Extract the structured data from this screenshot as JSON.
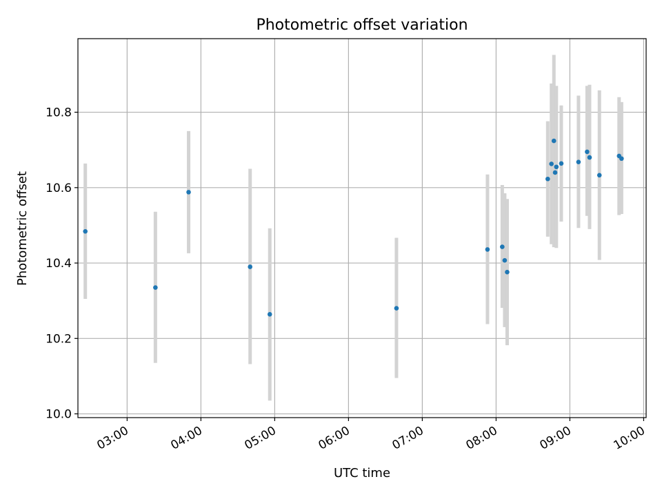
{
  "chart_data": {
    "type": "scatter",
    "title": "Photometric offset variation",
    "xlabel": "UTC time",
    "ylabel": "Photometric offset",
    "xlim": [
      "02:20",
      "10:02"
    ],
    "ylim": [
      9.99,
      10.9951
    ],
    "xticks": [
      "03:00",
      "04:00",
      "05:00",
      "06:00",
      "07:00",
      "08:00",
      "09:00",
      "10:00"
    ],
    "yticks": [
      "10.0",
      "10.2",
      "10.4",
      "10.6",
      "10.8"
    ],
    "grid": true,
    "legend": "none",
    "colors": {
      "points": "#1f77b4",
      "errorbars": "#d3d3d3",
      "grid": "#b0b0b0"
    },
    "series": [
      {
        "points": [
          {
            "x": "02:26",
            "y": 10.484,
            "y_low": 10.305,
            "y_high": 10.664
          },
          {
            "x": "03:23",
            "y": 10.335,
            "y_low": 10.135,
            "y_high": 10.536
          },
          {
            "x": "03:50",
            "y": 10.588,
            "y_low": 10.426,
            "y_high": 10.75
          },
          {
            "x": "04:40",
            "y": 10.39,
            "y_low": 10.132,
            "y_high": 10.65
          },
          {
            "x": "04:56",
            "y": 10.264,
            "y_low": 10.035,
            "y_high": 10.492
          },
          {
            "x": "06:39",
            "y": 10.28,
            "y_low": 10.095,
            "y_high": 10.467
          },
          {
            "x": "07:53",
            "y": 10.436,
            "y_low": 10.238,
            "y_high": 10.635
          },
          {
            "x": "08:05",
            "y": 10.443,
            "y_low": 10.281,
            "y_high": 10.607
          },
          {
            "x": "08:07",
            "y": 10.407,
            "y_low": 10.23,
            "y_high": 10.585
          },
          {
            "x": "08:09",
            "y": 10.376,
            "y_low": 10.182,
            "y_high": 10.57
          },
          {
            "x": "08:42",
            "y": 10.623,
            "y_low": 10.47,
            "y_high": 10.776
          },
          {
            "x": "08:45",
            "y": 10.663,
            "y_low": 10.45,
            "y_high": 10.876
          },
          {
            "x": "08:47",
            "y": 10.724,
            "y_low": 10.442,
            "y_high": 10.952
          },
          {
            "x": "08:48",
            "y": 10.64,
            "y_low": 10.445,
            "y_high": 10.857
          },
          {
            "x": "08:49",
            "y": 10.655,
            "y_low": 10.44,
            "y_high": 10.87
          },
          {
            "x": "08:53",
            "y": 10.664,
            "y_low": 10.51,
            "y_high": 10.818
          },
          {
            "x": "09:07",
            "y": 10.668,
            "y_low": 10.493,
            "y_high": 10.844
          },
          {
            "x": "09:14",
            "y": 10.695,
            "y_low": 10.525,
            "y_high": 10.87
          },
          {
            "x": "09:16",
            "y": 10.68,
            "y_low": 10.49,
            "y_high": 10.873
          },
          {
            "x": "09:24",
            "y": 10.633,
            "y_low": 10.408,
            "y_high": 10.858
          },
          {
            "x": "09:40",
            "y": 10.684,
            "y_low": 10.527,
            "y_high": 10.84
          },
          {
            "x": "09:42",
            "y": 10.677,
            "y_low": 10.53,
            "y_high": 10.827
          }
        ]
      }
    ]
  }
}
